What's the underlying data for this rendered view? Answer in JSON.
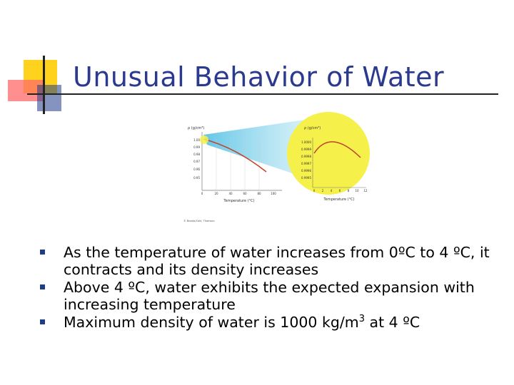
{
  "slide": {
    "title": "Unusual Behavior of Water",
    "bullets": [
      "As the temperature of water increases from 0ºC to 4 ºC, it contracts and its density increases",
      "Above 4 ºC, water exhibits the expected expansion with increasing temperature"
    ],
    "bullet3": {
      "text": "Maximum density of water is 1000 kg/m",
      "superscript": "3",
      "suffix": " at 4 ºC"
    }
  },
  "figure": {
    "main_plot": {
      "y_axis_label": "ρ (g/cm³)",
      "x_axis_label": "Temperature (°C)",
      "y_ticks": [
        "1.00",
        "0.99",
        "0.98",
        "0.97",
        "0.96",
        "0.95"
      ],
      "x_ticks": [
        "0",
        "20",
        "40",
        "60",
        "80",
        "100"
      ]
    },
    "zoom_plot": {
      "y_axis_label": "ρ (g/cm³)",
      "x_axis_label": "Temperature (°C)",
      "y_ticks": [
        "1.0000",
        "0.9999",
        "0.9998",
        "0.9997",
        "0.9996",
        "0.9995"
      ],
      "x_ticks": [
        "0",
        "2",
        "4",
        "6",
        "8",
        "10",
        "12"
      ]
    },
    "credit": "© Brooks/Cole, Thomson"
  },
  "colors": {
    "title": "#2b3a8f",
    "zoom_circle": "#f5f04a",
    "curve": "#c0442a",
    "funnel": "#7fd0e8"
  }
}
